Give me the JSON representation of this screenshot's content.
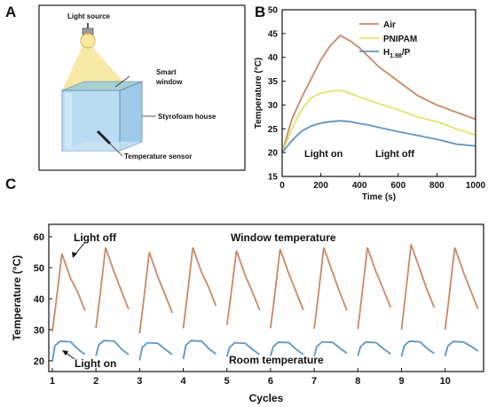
{
  "panels": {
    "a": {
      "letter": "A",
      "labels": {
        "light_source": "Light source",
        "smart_window_1": "Smart",
        "smart_window_2": "window",
        "house": "Styrofoam house",
        "sensor": "Temperature sensor"
      },
      "colors": {
        "frame": "#1a1a1a",
        "glass": "#aad3ee",
        "beam": "#f6e08a",
        "window": "#a9cfd2"
      }
    },
    "b": {
      "letter": "B",
      "annotations": {
        "light_on": "Light on",
        "light_off": "Light off"
      },
      "legend_sub": {
        "prefix": "H",
        "subscript": "1.98",
        "suffix": "/P"
      }
    },
    "c": {
      "letter": "C",
      "annotations": {
        "light_off": "Light off",
        "light_on": "Light on",
        "window_temperature": "Window temperature",
        "room_temperature": "Room temperature"
      }
    }
  },
  "chart_data": [
    {
      "panel": "B",
      "type": "line",
      "xlabel": "Time (s)",
      "ylabel": "Temperature (°C)",
      "xlim": [
        0,
        1000
      ],
      "ylim": [
        15,
        50
      ],
      "xticks": [
        0,
        200,
        400,
        600,
        800,
        1000
      ],
      "yticks": [
        15,
        20,
        25,
        30,
        35,
        40,
        45,
        50
      ],
      "legend_position": "top-right",
      "series": [
        {
          "name": "Air",
          "color": "#c98867",
          "x": [
            0,
            50,
            100,
            150,
            200,
            250,
            300,
            350,
            400,
            450,
            500,
            600,
            700,
            800,
            900,
            1000
          ],
          "y": [
            20,
            27,
            31.5,
            35.5,
            39.5,
            42.5,
            44.6,
            43.5,
            42,
            40,
            38,
            35,
            32,
            30,
            28.5,
            27
          ]
        },
        {
          "name": "PNIPAM",
          "color": "#e3e36b",
          "x": [
            0,
            50,
            100,
            150,
            200,
            250,
            300,
            350,
            400,
            450,
            500,
            600,
            700,
            800,
            900,
            1000
          ],
          "y": [
            20,
            25,
            29,
            31.5,
            32.5,
            32.9,
            33.1,
            32.5,
            31.7,
            31,
            30.3,
            29,
            27.5,
            26.5,
            25,
            23.7
          ]
        },
        {
          "name": "H1.98/P",
          "color": "#5f95c2",
          "x": [
            0,
            50,
            100,
            150,
            200,
            250,
            300,
            350,
            400,
            450,
            500,
            600,
            700,
            800,
            900,
            1000
          ],
          "y": [
            20,
            22.5,
            24.5,
            25.6,
            26.2,
            26.5,
            26.7,
            26.5,
            26.1,
            25.8,
            25.3,
            24.4,
            23.6,
            22.8,
            21.8,
            21.4
          ]
        }
      ]
    },
    {
      "panel": "C",
      "type": "line",
      "xlabel": "Cycles",
      "ylabel": "Temperature (°C)",
      "xlim": [
        0.92,
        10.88
      ],
      "ylim": [
        16.5,
        64
      ],
      "xticks": [
        1,
        2,
        3,
        4,
        5,
        6,
        7,
        8,
        9,
        10
      ],
      "yticks": [
        20,
        30,
        40,
        50,
        60
      ],
      "series": [
        {
          "name": "",
          "role": "window",
          "color": "#c98867",
          "peaks": [
            54.5,
            56.5,
            55,
            56.5,
            55.5,
            56,
            56.5,
            56.5,
            57.5,
            56.5
          ],
          "starts": [
            29.3,
            30.5,
            28.8,
            30.4,
            31.5,
            30.5,
            30.3,
            30.2,
            30.0,
            30.0
          ],
          "ends": [
            36.2,
            36.6,
            35.4,
            37.7,
            36.3,
            36.4,
            36.2,
            37.2,
            37.1,
            36.8
          ]
        },
        {
          "name": "",
          "role": "room",
          "color": "#5f95c2",
          "plateau": [
            26.3,
            26.5,
            25.8,
            26.5,
            25.8,
            26.0,
            26.1,
            26.0,
            26.3,
            26.2
          ],
          "starts": [
            19.6,
            21.5,
            20.1,
            20.5,
            21.3,
            21.5,
            21.5,
            21.5,
            21.3,
            21.5
          ],
          "ends": [
            22.0,
            22.0,
            22.0,
            22.2,
            22.0,
            22.0,
            22.4,
            22.2,
            22.3,
            23.1
          ]
        }
      ]
    }
  ]
}
